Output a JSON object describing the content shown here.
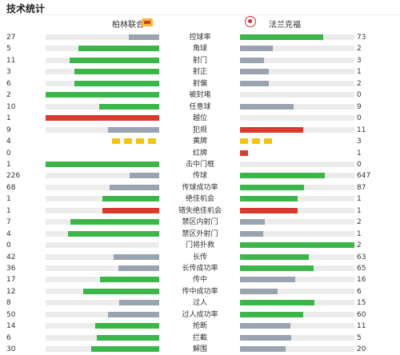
{
  "title": "技术统计",
  "home_team": "柏林联合",
  "away_team": "法兰克福",
  "colors": {
    "home_win": "#3cb54a",
    "neutral": "#9aa3b0",
    "negative": "#d73a2e",
    "yellow": "#f2c418"
  },
  "stats": [
    {
      "label": "控球率",
      "home": "27",
      "away": "73",
      "home_color": "gray",
      "away_color": "green",
      "home_ratio": 0.27,
      "away_ratio": 0.73
    },
    {
      "label": "角球",
      "home": "5",
      "away": "2",
      "home_color": "green",
      "away_color": "gray",
      "home_ratio": 0.71,
      "away_ratio": 0.29
    },
    {
      "label": "射门",
      "home": "11",
      "away": "3",
      "home_color": "green",
      "away_color": "gray",
      "home_ratio": 0.79,
      "away_ratio": 0.21
    },
    {
      "label": "射正",
      "home": "3",
      "away": "1",
      "home_color": "green",
      "away_color": "gray",
      "home_ratio": 0.75,
      "away_ratio": 0.25
    },
    {
      "label": "射偏",
      "home": "6",
      "away": "2",
      "home_color": "green",
      "away_color": "gray",
      "home_ratio": 0.75,
      "away_ratio": 0.25
    },
    {
      "label": "被封堵",
      "home": "2",
      "away": "0",
      "home_color": "green",
      "away_color": "gray",
      "home_ratio": 1.0,
      "away_ratio": 0.0
    },
    {
      "label": "任意球",
      "home": "10",
      "away": "9",
      "home_color": "green",
      "away_color": "gray",
      "home_ratio": 0.53,
      "away_ratio": 0.47
    },
    {
      "label": "越位",
      "home": "1",
      "away": "0",
      "home_color": "red",
      "away_color": "gray",
      "home_ratio": 1.0,
      "away_ratio": 0.0
    },
    {
      "label": "犯规",
      "home": "9",
      "away": "11",
      "home_color": "gray",
      "away_color": "red",
      "home_ratio": 0.45,
      "away_ratio": 0.55
    },
    {
      "label": "黄牌",
      "home": "4",
      "away": "3",
      "type": "yellow",
      "home_count": 4,
      "away_count": 3
    },
    {
      "label": "红牌",
      "home": "0",
      "away": "1",
      "type": "red",
      "home_count": 0,
      "away_count": 1
    },
    {
      "label": "击中门框",
      "home": "1",
      "away": "0",
      "home_color": "green",
      "away_color": "gray",
      "home_ratio": 1.0,
      "away_ratio": 0.0
    },
    {
      "label": "传球",
      "home": "226",
      "away": "647",
      "home_color": "gray",
      "away_color": "green",
      "home_ratio": 0.26,
      "away_ratio": 0.74
    },
    {
      "label": "传球成功率",
      "home": "68",
      "away": "87",
      "home_color": "gray",
      "away_color": "green",
      "home_ratio": 0.44,
      "away_ratio": 0.56
    },
    {
      "label": "绝佳机会",
      "home": "1",
      "away": "1",
      "home_color": "green",
      "away_color": "green",
      "home_ratio": 0.5,
      "away_ratio": 0.5
    },
    {
      "label": "错失绝佳机会",
      "home": "1",
      "away": "1",
      "home_color": "red",
      "away_color": "red",
      "home_ratio": 0.5,
      "away_ratio": 0.5
    },
    {
      "label": "禁区内射门",
      "home": "7",
      "away": "2",
      "home_color": "green",
      "away_color": "gray",
      "home_ratio": 0.78,
      "away_ratio": 0.22
    },
    {
      "label": "禁区外射门",
      "home": "4",
      "away": "1",
      "home_color": "green",
      "away_color": "gray",
      "home_ratio": 0.8,
      "away_ratio": 0.2
    },
    {
      "label": "门将扑救",
      "home": "0",
      "away": "2",
      "home_color": "gray",
      "away_color": "green",
      "home_ratio": 0.0,
      "away_ratio": 1.0
    },
    {
      "label": "长传",
      "home": "42",
      "away": "63",
      "home_color": "gray",
      "away_color": "green",
      "home_ratio": 0.4,
      "away_ratio": 0.6
    },
    {
      "label": "长传成功率",
      "home": "36",
      "away": "65",
      "home_color": "gray",
      "away_color": "green",
      "home_ratio": 0.36,
      "away_ratio": 0.64
    },
    {
      "label": "传中",
      "home": "17",
      "away": "16",
      "home_color": "green",
      "away_color": "gray",
      "home_ratio": 0.52,
      "away_ratio": 0.48
    },
    {
      "label": "传中成功率",
      "home": "12",
      "away": "6",
      "home_color": "green",
      "away_color": "gray",
      "home_ratio": 0.67,
      "away_ratio": 0.33
    },
    {
      "label": "过人",
      "home": "8",
      "away": "15",
      "home_color": "gray",
      "away_color": "green",
      "home_ratio": 0.35,
      "away_ratio": 0.65
    },
    {
      "label": "过人成功率",
      "home": "50",
      "away": "60",
      "home_color": "gray",
      "away_color": "green",
      "home_ratio": 0.45,
      "away_ratio": 0.55
    },
    {
      "label": "抢断",
      "home": "14",
      "away": "11",
      "home_color": "green",
      "away_color": "gray",
      "home_ratio": 0.56,
      "away_ratio": 0.44
    },
    {
      "label": "拦截",
      "home": "6",
      "away": "5",
      "home_color": "green",
      "away_color": "gray",
      "home_ratio": 0.55,
      "away_ratio": 0.45
    },
    {
      "label": "解围",
      "home": "30",
      "away": "20",
      "home_color": "green",
      "away_color": "gray",
      "home_ratio": 0.6,
      "away_ratio": 0.4
    }
  ]
}
